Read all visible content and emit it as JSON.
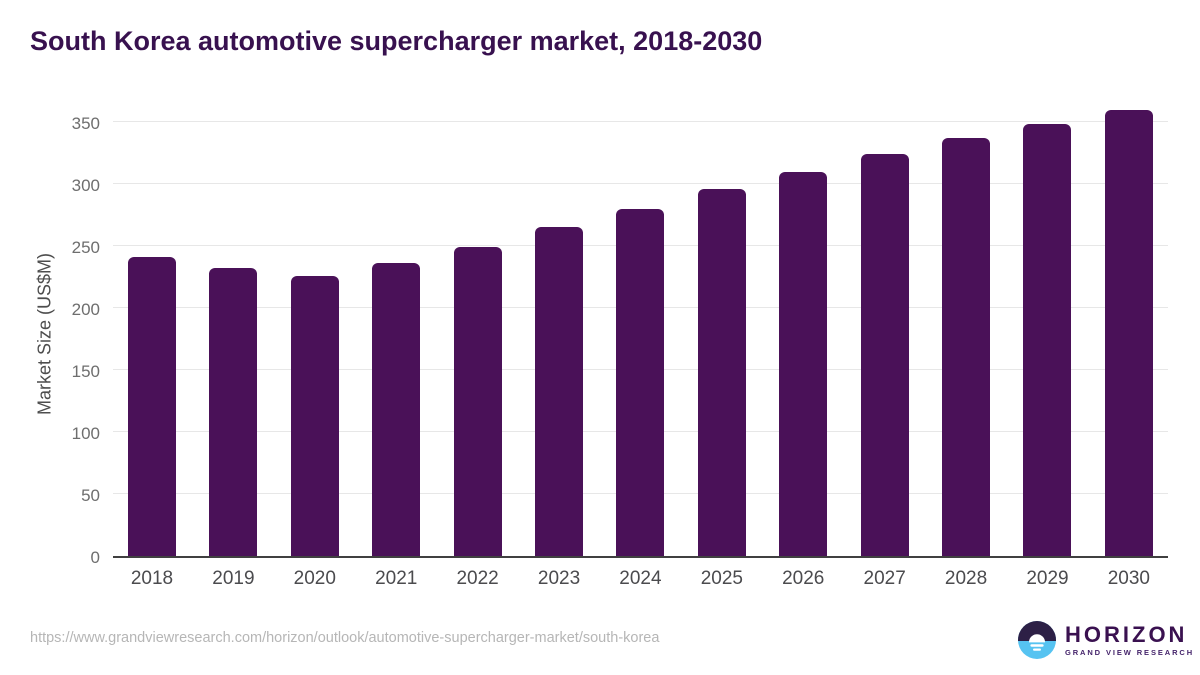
{
  "header": {
    "title": "South Korea automotive supercharger market, 2018-2030"
  },
  "chart_data": {
    "type": "bar",
    "title": "South Korea automotive supercharger market, 2018-2030",
    "categories": [
      "2018",
      "2019",
      "2020",
      "2021",
      "2022",
      "2023",
      "2024",
      "2025",
      "2026",
      "2027",
      "2028",
      "2029",
      "2030"
    ],
    "values": [
      241,
      232,
      226,
      236,
      249,
      265,
      280,
      296,
      310,
      324,
      337,
      348,
      360
    ],
    "xlabel": "",
    "ylabel": "Market Size (US$M)",
    "ylim": [
      0,
      361
    ],
    "yticks": [
      0,
      50,
      100,
      150,
      200,
      250,
      300,
      350
    ],
    "grid": true,
    "legend": "none",
    "bar_color": "#4a1158"
  },
  "footer": {
    "source_url": "https://www.grandviewresearch.com/horizon/outlook/automotive-supercharger-market/south-korea",
    "logo": {
      "name": "HORIZON",
      "subtitle": "GRAND VIEW RESEARCH",
      "icon": "sunrise-horizon-icon",
      "icon_top_color": "#2d2046",
      "icon_bottom_color": "#56c3f1"
    }
  },
  "colors": {
    "title": "#38114f",
    "bar": "#4a1158",
    "axis_line": "#404040",
    "gridline": "#e7e7e7",
    "y_tick_text": "#6e6e6e",
    "x_tick_text": "#4b4b4e",
    "url_text": "#b6b6b6",
    "background": "#ffffff"
  }
}
